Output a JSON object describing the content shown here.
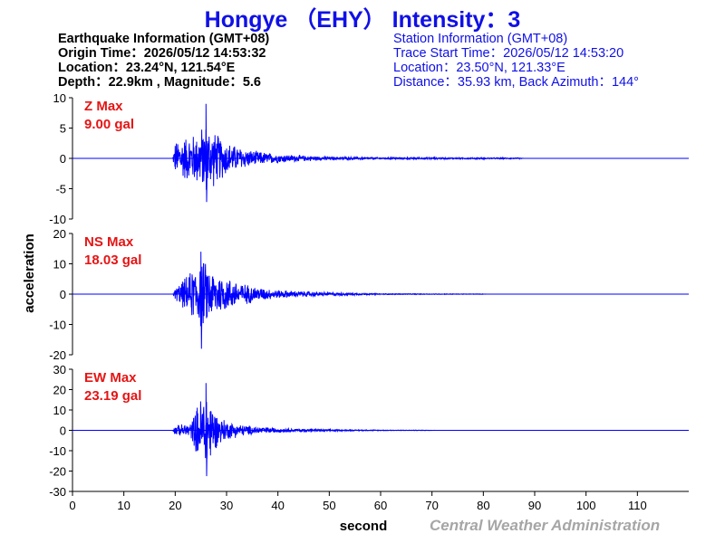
{
  "header": {
    "title": "Hongye （EHY） Intensity：3",
    "earthquake_info": [
      "Earthquake Information  (GMT+08)",
      "Origin Time：2026/05/12 14:53:32",
      "Location：23.24°N, 121.54°E",
      "Depth：22.9km , Magnitude：5.6"
    ],
    "station_info": [
      "Station Information  (GMT+08)",
      "Trace Start Time：2026/05/12 14:53:20",
      "Location：23.50°N, 121.33°E",
      "Distance：35.93 km, Back Azimuth：144°"
    ]
  },
  "footer": {
    "credit": "Central Weather Administration"
  },
  "colors": {
    "title": "#1010e6",
    "trace": "#0000ff",
    "max_label": "#e61414",
    "axis": "#000000",
    "credit": "#a6a6a6"
  },
  "chart_data": {
    "type": "line",
    "xlabel": "second",
    "ylabel": "acceleration",
    "xlim": [
      0,
      120
    ],
    "x_ticks": [
      0,
      10,
      20,
      30,
      40,
      50,
      60,
      70,
      80,
      90,
      100,
      110
    ],
    "grid": false,
    "legend": "none",
    "panels": [
      {
        "component": "Z",
        "max_label": "Z Max",
        "max_value": "9.00 gal",
        "ylim": [
          -10,
          10
        ],
        "y_ticks": [
          10,
          5,
          0,
          -5,
          -10
        ],
        "onset_s": 20,
        "peak_time_s": 26,
        "peak_positive": 9.0,
        "peak_negative": -7.2,
        "envelope": [
          [
            19.5,
            0
          ],
          [
            20,
            3.0
          ],
          [
            22,
            4.0
          ],
          [
            24,
            4.5
          ],
          [
            26,
            6.5
          ],
          [
            28,
            4.5
          ],
          [
            30,
            3.0
          ],
          [
            32,
            2.2
          ],
          [
            35,
            1.4
          ],
          [
            40,
            0.8
          ],
          [
            45,
            0.5
          ],
          [
            50,
            0.3
          ],
          [
            60,
            0.2
          ],
          [
            70,
            0.15
          ],
          [
            87,
            0.1
          ],
          [
            88,
            0
          ]
        ]
      },
      {
        "component": "NS",
        "max_label": "NS Max",
        "max_value": "18.03 gal",
        "ylim": [
          -20,
          20
        ],
        "y_ticks": [
          20,
          10,
          0,
          -10,
          -20
        ],
        "onset_s": 20,
        "peak_time_s": 25,
        "peak_positive": 14.0,
        "peak_negative": -18.03,
        "envelope": [
          [
            19.5,
            0
          ],
          [
            20,
            2.0
          ],
          [
            22,
            6.0
          ],
          [
            24,
            10.0
          ],
          [
            25,
            13.0
          ],
          [
            27,
            9.0
          ],
          [
            30,
            6.0
          ],
          [
            33,
            4.0
          ],
          [
            36,
            2.5
          ],
          [
            40,
            1.5
          ],
          [
            45,
            1.0
          ],
          [
            50,
            0.7
          ],
          [
            55,
            0.4
          ],
          [
            60,
            0.2
          ],
          [
            70,
            0.12
          ],
          [
            80,
            0.08
          ],
          [
            81,
            0
          ]
        ]
      },
      {
        "component": "EW",
        "max_label": "EW Max",
        "max_value": "23.19 gal",
        "ylim": [
          -30,
          30
        ],
        "y_ticks": [
          30,
          20,
          10,
          0,
          -10,
          -20,
          -30
        ],
        "onset_s": 20,
        "peak_time_s": 26,
        "peak_positive": 23.19,
        "peak_negative": -22.5,
        "envelope": [
          [
            19.5,
            0
          ],
          [
            20,
            2.5
          ],
          [
            23,
            4.0
          ],
          [
            25,
            18.0
          ],
          [
            26,
            22.0
          ],
          [
            27,
            16.0
          ],
          [
            28,
            9.0
          ],
          [
            30,
            5.0
          ],
          [
            33,
            3.0
          ],
          [
            36,
            2.0
          ],
          [
            40,
            1.2
          ],
          [
            45,
            0.8
          ],
          [
            50,
            0.5
          ],
          [
            55,
            0.3
          ],
          [
            60,
            0.2
          ],
          [
            70,
            0.1
          ],
          [
            71,
            0
          ]
        ]
      }
    ]
  }
}
